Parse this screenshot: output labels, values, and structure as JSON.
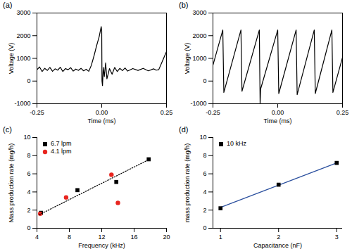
{
  "chart_data": [
    {
      "type": "line",
      "title": "(a)",
      "x_label": "Time (ms)",
      "y_label": "Voltage (V)",
      "xlim": [
        -0.25,
        0.25
      ],
      "ylim": [
        -1000,
        3000
      ],
      "xticks": [
        -0.25,
        {
          "value": 0,
          "label": "0.00"
        },
        0.25
      ],
      "yticks": [
        -1000,
        0,
        1000,
        2000,
        3000
      ],
      "color": "#000000",
      "x": [
        -0.25,
        -0.24,
        -0.23,
        -0.22,
        -0.21,
        -0.2,
        -0.19,
        -0.18,
        -0.17,
        -0.16,
        -0.15,
        -0.14,
        -0.13,
        -0.12,
        -0.11,
        -0.1,
        -0.09,
        -0.08,
        -0.07,
        -0.06,
        -0.05,
        -0.04,
        -0.03,
        -0.02,
        -0.01,
        -0.002,
        0.0,
        0.001,
        0.003,
        0.006,
        0.01,
        0.015,
        0.02,
        0.03,
        0.04,
        0.05,
        0.06,
        0.07,
        0.08,
        0.09,
        0.1,
        0.12,
        0.14,
        0.16,
        0.18,
        0.2,
        0.21,
        0.22,
        0.235,
        0.25
      ],
      "values": [
        500,
        620,
        420,
        560,
        470,
        600,
        430,
        540,
        480,
        610,
        420,
        550,
        500,
        590,
        440,
        530,
        470,
        560,
        450,
        520,
        430,
        700,
        1100,
        1550,
        1950,
        2400,
        2200,
        0,
        -200,
        600,
        200,
        800,
        100,
        550,
        300,
        600,
        420,
        560,
        460,
        580,
        440,
        550,
        470,
        560,
        450,
        540,
        480,
        500,
        900,
        1300
      ]
    },
    {
      "type": "line",
      "title": "(b)",
      "x_label": "Time (ms)",
      "y_label": "Voltage (V)",
      "xlim": [
        -0.25,
        0.25
      ],
      "ylim": [
        -1000,
        3000
      ],
      "xticks": [
        -0.25,
        {
          "value": 0,
          "label": "0.00"
        },
        0.25
      ],
      "yticks": [
        -1000,
        0,
        1000,
        2000,
        3000
      ],
      "color": "#000000",
      "x": [
        -0.25,
        -0.212,
        -0.208,
        -0.142,
        -0.138,
        -0.071,
        -0.068,
        -0.066,
        0.0,
        0.004,
        0.071,
        0.075,
        0.141,
        0.145,
        0.209,
        0.213,
        0.25
      ],
      "values": [
        700,
        2250,
        -500,
        2250,
        -450,
        2250,
        -1000,
        -350,
        2250,
        -550,
        2250,
        -600,
        2250,
        -550,
        2250,
        -500,
        1040
      ]
    },
    {
      "type": "scatter",
      "title": "(c)",
      "x_label": "Frequency (kHz)",
      "y_label": "Mass production rate (mg/h)",
      "xlim": [
        4,
        20
      ],
      "ylim": [
        0,
        10
      ],
      "xticks": [
        4,
        8,
        12,
        16,
        20
      ],
      "yticks": [
        0,
        2,
        4,
        6,
        8,
        10
      ],
      "legend": "upper left",
      "series": [
        {
          "name": "6.7 lpm",
          "color": "#000000",
          "marker": "square",
          "x": [
            4.5,
            9,
            13.8,
            17.8
          ],
          "values": [
            1.7,
            4.2,
            5.1,
            7.6
          ]
        },
        {
          "name": "4.1 lpm",
          "color": "#e8251f",
          "marker": "circle",
          "x": [
            4.4,
            7.6,
            13.2,
            14
          ],
          "values": [
            1.6,
            3.4,
            5.9,
            2.8
          ]
        },
        {
          "type": "line",
          "line_style": "dotted",
          "color": "#000000",
          "x": [
            4.3,
            17.9
          ],
          "values": [
            1.5,
            7.6
          ]
        }
      ]
    },
    {
      "type": "scatter",
      "title": "(d)",
      "x_label": "Capacitance (nF)",
      "y_label": "mass production rate (mg/h)",
      "xlim": [
        0.87,
        3.1
      ],
      "ylim": [
        0,
        10
      ],
      "xticks": [
        1,
        2,
        3
      ],
      "yticks": [
        0,
        2,
        4,
        6,
        8,
        10
      ],
      "legend": "upper left",
      "series": [
        {
          "type": "line",
          "line_style": "solid",
          "color": "#2a4f9e",
          "x": [
            1,
            3
          ],
          "values": [
            2.3,
            7.2
          ]
        },
        {
          "name": "10 kHz",
          "color": "#000000",
          "marker": "square",
          "x": [
            1,
            2,
            3
          ],
          "values": [
            2.2,
            4.8,
            7.2
          ]
        }
      ]
    }
  ]
}
